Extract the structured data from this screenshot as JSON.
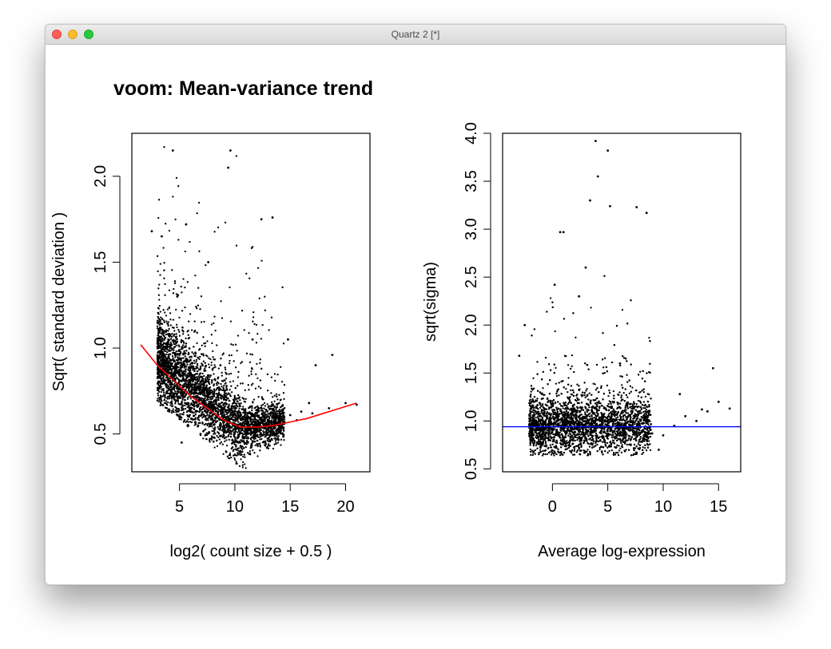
{
  "window": {
    "title": "Quartz 2 [*]",
    "controls": [
      "close-button",
      "minimize-button",
      "zoom-button"
    ]
  },
  "chart_data": [
    {
      "type": "scatter",
      "title": "voom: Mean-variance trend",
      "xlabel": "log2( count size + 0.5 )",
      "ylabel": "Sqrt( standard deviation )",
      "xlim": [
        0.7,
        22.2
      ],
      "ylim": [
        0.28,
        2.25
      ],
      "xticks": [
        "5",
        "10",
        "15",
        "20"
      ],
      "yticks": [
        "0.5",
        "1.0",
        "1.5",
        "2.0"
      ],
      "grid": false,
      "series": [
        {
          "kind": "points",
          "color": "#000000",
          "x": [
            3.2,
            3.5,
            4.0,
            4.5,
            5.0,
            5.5,
            6.0,
            7.0,
            8.0,
            9.0,
            10.0,
            11.0,
            12.0,
            13.0,
            14.0,
            15.0,
            16.0,
            17.0,
            18.5,
            20.0,
            21.0,
            3.4,
            4.8,
            6.4,
            8.7,
            9.6,
            12.4,
            13.4,
            17.3,
            2.5,
            4.4,
            5.6,
            7.6,
            9.4,
            11.6,
            14.8,
            16.7,
            18.8,
            3.9,
            5.2,
            10.6,
            12.9,
            6.9,
            8.1,
            15.6
          ],
          "y": [
            0.92,
            0.86,
            0.81,
            0.76,
            0.71,
            0.68,
            0.65,
            0.61,
            0.58,
            0.55,
            0.53,
            0.52,
            0.53,
            0.55,
            0.58,
            0.61,
            0.63,
            0.62,
            0.65,
            0.68,
            0.67,
            1.65,
            1.3,
            1.1,
            0.9,
            2.15,
            1.75,
            1.76,
            0.9,
            1.68,
            2.15,
            1.72,
            1.5,
            2.05,
            1.05,
            1.05,
            0.68,
            0.96,
            0.75,
            0.45,
            0.38,
            0.42,
            0.5,
            0.48,
            0.58
          ]
        },
        {
          "kind": "trend",
          "color": "#ff0000",
          "x": [
            1.5,
            3.0,
            4.5,
            6.0,
            7.5,
            9.0,
            10.5,
            12.0,
            13.5,
            15.0,
            16.5,
            18.0,
            19.5,
            21.0
          ],
          "y": [
            1.02,
            0.9,
            0.81,
            0.72,
            0.65,
            0.58,
            0.54,
            0.54,
            0.55,
            0.57,
            0.59,
            0.62,
            0.65,
            0.68
          ]
        }
      ]
    },
    {
      "type": "scatter",
      "title": "",
      "xlabel": "Average log-expression",
      "ylabel": "sqrt(sigma)",
      "xlim": [
        -4.5,
        17.0
      ],
      "ylim": [
        0.47,
        4.0
      ],
      "xticks": [
        "0",
        "5",
        "10",
        "15"
      ],
      "yticks": [
        "0.5",
        "1.0",
        "1.5",
        "2.0",
        "2.5",
        "3.0",
        "3.5",
        "4.0"
      ],
      "grid": false,
      "series": [
        {
          "kind": "points",
          "color": "#000000",
          "x": [
            -2.0,
            -1.0,
            0.0,
            1.0,
            2.0,
            3.0,
            4.0,
            5.0,
            6.0,
            7.0,
            8.0,
            9.0,
            10.0,
            11.0,
            12.0,
            13.0,
            14.0,
            15.0,
            16.0,
            3.9,
            4.1,
            5.0,
            3.4,
            0.7,
            1.0,
            7.6,
            8.5,
            5.2,
            14.5,
            3.0,
            -3.0,
            -2.5,
            2.4,
            6.1,
            11.5,
            13.5,
            0.2,
            9.6
          ],
          "y": [
            0.95,
            0.92,
            0.9,
            0.9,
            0.92,
            0.95,
            0.97,
            0.95,
            0.92,
            0.9,
            0.88,
            0.87,
            0.85,
            0.95,
            1.05,
            1.0,
            1.1,
            1.2,
            1.13,
            3.92,
            3.55,
            3.82,
            3.3,
            2.97,
            2.97,
            3.23,
            3.17,
            3.24,
            1.55,
            2.6,
            1.68,
            2.0,
            2.3,
            1.6,
            1.28,
            1.12,
            2.42,
            0.7
          ]
        },
        {
          "kind": "hline",
          "color": "#0000ff",
          "y": 0.94
        }
      ]
    }
  ]
}
